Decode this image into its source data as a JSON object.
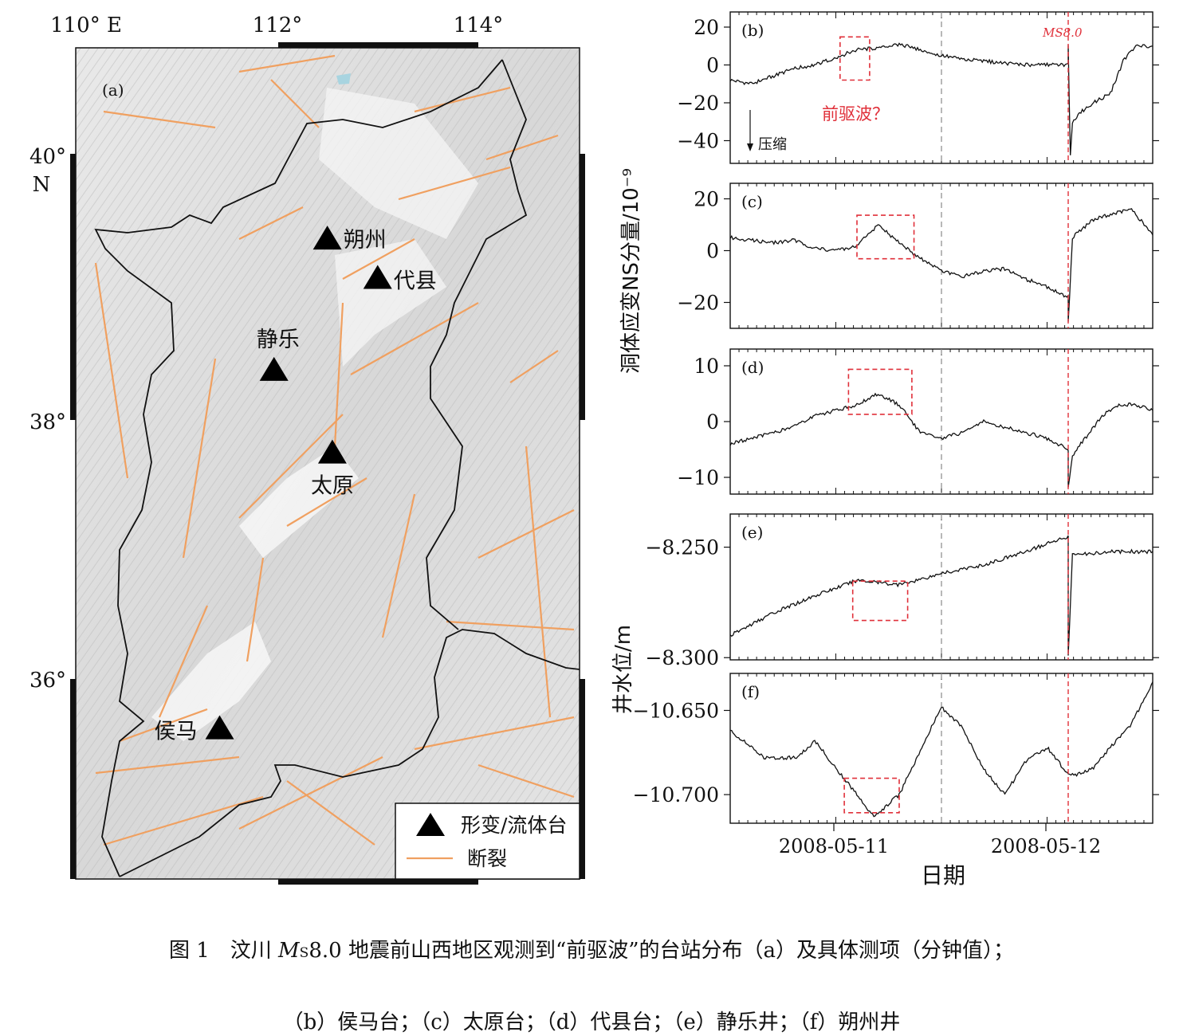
{
  "map": {
    "panel_label": "(a)",
    "lon_labels": [
      "110° E",
      "112°",
      "114°"
    ],
    "lat_labels": [
      "40°",
      "N",
      "38°",
      "36°"
    ],
    "stations": [
      {
        "name": "朔州",
        "lon": 112.5,
        "lat": 39.35
      },
      {
        "name": "代县",
        "lon": 113.0,
        "lat": 39.05
      },
      {
        "name": "静乐",
        "lon": 111.97,
        "lat": 38.35
      },
      {
        "name": "太原",
        "lon": 112.55,
        "lat": 37.72
      },
      {
        "name": "侯马",
        "lon": 111.43,
        "lat": 35.62
      }
    ],
    "legend": {
      "station_label": "形变/流体台",
      "fault_label": "断裂"
    },
    "colors": {
      "fault": "#f0a060",
      "border": "#111111",
      "station": "#000000"
    }
  },
  "timeseries": {
    "ylabel_strain": "洞体应变NS分量/10⁻⁹",
    "ylabel_water": "井水位/m",
    "xlabel": "日期",
    "x_tick_labels": [
      "2008-05-11",
      "2008-05-12"
    ],
    "mainshock_label": "MS8.0",
    "precursor_label": "前驱波？",
    "compression_label": "压缩",
    "colors": {
      "line": "#111111",
      "highlight": "#e0303a",
      "dashed_gray": "#888888"
    }
  },
  "chart_data": [
    {
      "type": "line",
      "panel": "(b)",
      "ylim": [
        -52,
        28
      ],
      "yticks": [
        20,
        0,
        -20,
        -40
      ],
      "tick_labels": [
        "20",
        "0",
        "−20",
        "−40"
      ],
      "x": [
        0,
        0.05,
        0.1,
        0.15,
        0.2,
        0.25,
        0.3,
        0.35,
        0.4,
        0.45,
        0.5,
        0.55,
        0.6,
        0.65,
        0.7,
        0.75,
        0.8,
        0.8,
        0.805,
        0.81,
        0.83,
        0.86,
        0.9,
        0.93,
        0.96,
        1.0
      ],
      "values": [
        -8,
        -10,
        -6,
        -2,
        0,
        4,
        8,
        9,
        11,
        8,
        5,
        3,
        2,
        1,
        0,
        0,
        0,
        10,
        -48,
        -30,
        -25,
        -20,
        -15,
        2,
        10,
        10
      ]
    },
    {
      "type": "line",
      "panel": "(c)",
      "ylim": [
        -30,
        26
      ],
      "yticks": [
        20,
        0,
        -20
      ],
      "tick_labels": [
        "20",
        "0",
        "−20"
      ],
      "x": [
        0,
        0.05,
        0.1,
        0.15,
        0.2,
        0.25,
        0.3,
        0.35,
        0.4,
        0.45,
        0.5,
        0.55,
        0.6,
        0.65,
        0.7,
        0.75,
        0.8,
        0.8,
        0.81,
        0.83,
        0.86,
        0.9,
        0.95,
        1.0
      ],
      "values": [
        5,
        4,
        3,
        4,
        1,
        0,
        2,
        10,
        3,
        -3,
        -8,
        -10,
        -8,
        -7,
        -11,
        -14,
        -18,
        -28,
        5,
        8,
        12,
        14,
        16,
        6
      ]
    },
    {
      "type": "line",
      "panel": "(d)",
      "ylim": [
        -13,
        13
      ],
      "yticks": [
        10,
        0,
        -10
      ],
      "tick_labels": [
        "10",
        "0",
        "−10"
      ],
      "x": [
        0,
        0.05,
        0.1,
        0.15,
        0.2,
        0.25,
        0.3,
        0.35,
        0.4,
        0.45,
        0.5,
        0.55,
        0.6,
        0.65,
        0.7,
        0.75,
        0.8,
        0.8,
        0.81,
        0.84,
        0.88,
        0.92,
        0.96,
        1.0
      ],
      "values": [
        -4,
        -3,
        -2,
        -1,
        1,
        2,
        3,
        5,
        3,
        -2,
        -3,
        -2,
        0,
        -1,
        -2,
        -3,
        -5,
        -12,
        -6,
        -3,
        1,
        3,
        3,
        2
      ]
    },
    {
      "type": "line",
      "panel": "(e)",
      "ylim": [
        -8.301,
        -8.235
      ],
      "yticks": [
        -8.25,
        -8.3
      ],
      "tick_labels": [
        "−8.250",
        "−8.300"
      ],
      "x": [
        0,
        0.1,
        0.2,
        0.3,
        0.4,
        0.5,
        0.6,
        0.7,
        0.8,
        0.8,
        0.81,
        0.85,
        0.9,
        1.0
      ],
      "values": [
        -8.29,
        -8.28,
        -8.272,
        -8.265,
        -8.267,
        -8.262,
        -8.258,
        -8.252,
        -8.245,
        -8.299,
        -8.253,
        -8.253,
        -8.252,
        -8.252
      ]
    },
    {
      "type": "line",
      "panel": "(f)",
      "ylim": [
        -10.717,
        -10.628
      ],
      "yticks": [
        -10.65,
        -10.7
      ],
      "tick_labels": [
        "−10.650",
        "−10.700"
      ],
      "x": [
        0,
        0.08,
        0.16,
        0.2,
        0.25,
        0.3,
        0.34,
        0.4,
        0.5,
        0.55,
        0.6,
        0.65,
        0.7,
        0.75,
        0.8,
        0.82,
        0.86,
        0.9,
        0.95,
        1.0
      ],
      "values": [
        -10.662,
        -10.678,
        -10.678,
        -10.668,
        -10.684,
        -10.7,
        -10.713,
        -10.7,
        -10.648,
        -10.66,
        -10.685,
        -10.7,
        -10.68,
        -10.672,
        -10.688,
        -10.688,
        -10.684,
        -10.672,
        -10.658,
        -10.633
      ]
    }
  ],
  "caption": {
    "line1_prefix": "图 1　汶川 ",
    "line1_m": "M",
    "line1_s": "S",
    "line1_rest": "8.0 地震前山西地区观测到“前驱波”的台站分布（a）及具体测项（分钟值）；",
    "line2": "（b）侯马台；（c）太原台；（d）代县台；（e）静乐井；（f）朔州井"
  }
}
